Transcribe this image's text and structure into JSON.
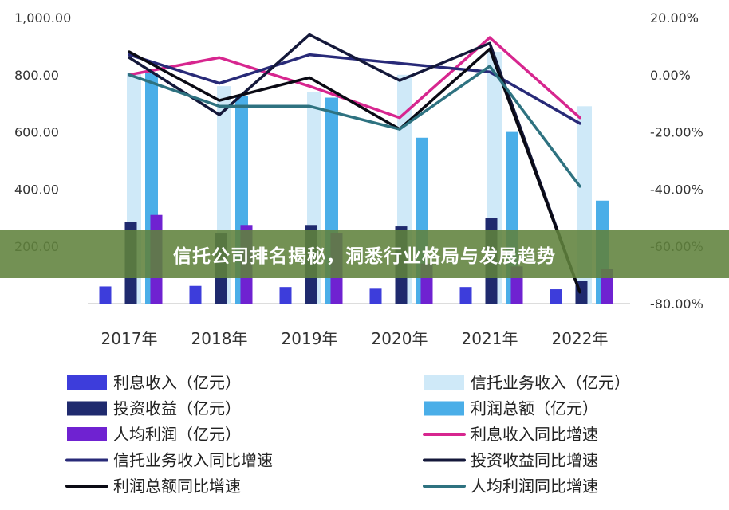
{
  "banner": {
    "title": "信托公司排名揭秘，洞悉行业格局与发展趋势"
  },
  "colors": {
    "interest_income": "#3d3ddb",
    "trust_income": "#cfe9f8",
    "investment_income": "#1f2a6e",
    "total_profit": "#4aaee8",
    "per_capita_profit": "#6f22d1",
    "interest_growth": "#d7268f",
    "trust_growth": "#282a78",
    "investment_growth": "#14183a",
    "profit_growth": "#0a0a14",
    "per_capita_growth": "#2e7280"
  },
  "chart_data": {
    "type": "bar",
    "categories": [
      "2017年",
      "2018年",
      "2019年",
      "2020年",
      "2021年",
      "2022年"
    ],
    "y_left": {
      "range": [
        0,
        1000
      ],
      "ticks": [
        "1,000.00",
        "800.00",
        "600.00",
        "400.00",
        "200.00"
      ],
      "tick_values": [
        1000,
        800,
        600,
        400,
        200
      ]
    },
    "y_right": {
      "range": [
        -80,
        20
      ],
      "ticks": [
        "20.00%",
        "0.00%",
        "-20.00%",
        "-40.00%",
        "-60.00%",
        "-80.00%"
      ],
      "tick_values": [
        20,
        0,
        -20,
        -40,
        -60,
        -80
      ]
    },
    "grid": false,
    "legend_position": "bottom",
    "bar_series": [
      {
        "key": "interest_income",
        "name": "利息收入（亿元）",
        "values": [
          60,
          62,
          58,
          52,
          58,
          50
        ]
      },
      {
        "key": "trust_income",
        "name": "信托业务收入（亿元）",
        "values": [
          805,
          760,
          740,
          800,
          880,
          690
        ]
      },
      {
        "key": "investment_income",
        "name": "投资收益（亿元）",
        "values": [
          285,
          245,
          275,
          270,
          300,
          78
        ]
      },
      {
        "key": "total_profit",
        "name": "利润总额（亿元）",
        "values": [
          805,
          725,
          720,
          580,
          600,
          360
        ]
      },
      {
        "key": "per_capita_profit",
        "name": "人均利润（亿元）",
        "values": [
          310,
          275,
          245,
          140,
          130,
          120
        ]
      }
    ],
    "line_series": [
      {
        "key": "interest_growth",
        "name": "利息收入同比增速",
        "values": [
          0,
          6,
          -4,
          -15,
          13,
          -15
        ]
      },
      {
        "key": "trust_growth",
        "name": "信托业务收入同比增速",
        "values": [
          7,
          -3,
          7,
          4,
          1,
          -17
        ]
      },
      {
        "key": "investment_growth",
        "name": "投资收益同比增速",
        "values": [
          6,
          -14,
          14,
          -2,
          11,
          -76
        ]
      },
      {
        "key": "profit_growth",
        "name": "利润总额同比增速",
        "values": [
          8,
          -9,
          -1,
          -19,
          9,
          -76
        ]
      },
      {
        "key": "per_capita_growth",
        "name": "人均利润同比增速",
        "values": [
          0,
          -11,
          -11,
          -19,
          3,
          -39
        ]
      }
    ]
  }
}
